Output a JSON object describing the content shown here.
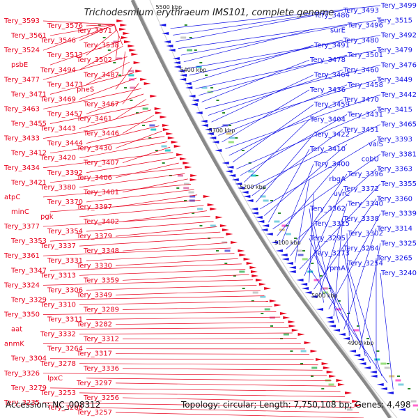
{
  "title": "Trichodesmium erythraeum IMS101, complete genome",
  "footer": {
    "accession": "Accession: NC_008312",
    "summary": "Topology: circular; Length: 7,750,108 bp; Genes: 4,498"
  },
  "kbp_marks": [
    "5500 kbp",
    "5400 kbp",
    "5300 kbp",
    "5200 kbp",
    "5100 kbp",
    "5000 kbp",
    "4900 kbp"
  ],
  "colors": {
    "forward": "#e8001c",
    "reverse": "#1414e6",
    "backbone": "#888888",
    "tick": "#2a8a2a",
    "label_left": "#e8001c",
    "label_right": "#1414e6"
  },
  "left_labels": [
    "Tery_3593",
    "Tery_3576",
    "Tery_3571",
    "Tery_3561",
    "Tery_3546",
    "Tery_3538",
    "Tery_3524",
    "Tery_3513",
    "Tery_3502",
    "psbE",
    "Tery_3494",
    "Tery_3487",
    "Tery_3477",
    "Tery_3473",
    "pheS",
    "Tery_3471",
    "Tery_3469",
    "Tery_3467",
    "Tery_3463",
    "Tery_3457",
    "Tery_3461",
    "Tery_3455",
    "Tery_3443",
    "Tery_3446",
    "Tery_3433",
    "Tery_3444",
    "Tery_3430",
    "Tery_3412",
    "Tery_3420",
    "Tery_3407",
    "Tery_3434",
    "Tery_3392",
    "Tery_3406",
    "Tery_3421",
    "Tery_3380",
    "Tery_3401",
    "atpC",
    "Tery_3370",
    "Tery_3397",
    "minC",
    "pgk",
    "Tery_3402",
    "Tery_3377",
    "Tery_3354",
    "Tery_3379",
    "Tery_3353",
    "Tery_3337",
    "Tery_3348",
    "Tery_3361",
    "Tery_3331",
    "Tery_3330",
    "Tery_3347",
    "Tery_3313",
    "Tery_3359",
    "Tery_3324",
    "Tery_3306",
    "Tery_3349",
    "Tery_3329",
    "Tery_3310",
    "Tery_3289",
    "Tery_3350",
    "Tery_3311",
    "Tery_3282",
    "aat",
    "Tery_3332",
    "Tery_3312",
    "anmK",
    "Tery_3264",
    "Tery_3317",
    "Tery_3304",
    "Tery_3278",
    "Tery_3336",
    "Tery_3326",
    "lpxC",
    "Tery_3297",
    "Tery_3279",
    "Tery_3253",
    "Tery_3256",
    "Tery_3235",
    "Tery_3268",
    "Tery_3257"
  ],
  "right_labels": [
    "Tery_3499",
    "Tery_3493",
    "Tery_3486",
    "Tery_3515",
    "Tery_3496",
    "surE",
    "Tery_3492",
    "Tery_3480",
    "Tery_3491",
    "Tery_3479",
    "Tery_3501",
    "Tery_3478",
    "Tery_3476",
    "Tery_3460",
    "Tery_3464",
    "Tery_3449",
    "Tery_3458",
    "Tery_3436",
    "Tery_3442",
    "Tery_3470",
    "Tery_3459",
    "Tery_3415",
    "Tery_3431",
    "Tery_3404",
    "Tery_3465",
    "Tery_3451",
    "Tery_3422",
    "Tery_3393",
    "valS",
    "Tery_3410",
    "Tery_3381",
    "cobU",
    "Tery_3400",
    "Tery_3363",
    "Tery_3396",
    "rbgA",
    "Tery_3355",
    "Tery_3372",
    "uvrC",
    "Tery_3360",
    "Tery_3340",
    "Tery_3362",
    "Tery_3339",
    "Tery_3338",
    "Tery_3315",
    "Tery_3314",
    "Tery_3302",
    "Tery_3295",
    "Tery_3325",
    "Tery_3284",
    "Tery_3273",
    "Tery_3265",
    "Tery_3254",
    "rpmA",
    "Tery_3240"
  ]
}
